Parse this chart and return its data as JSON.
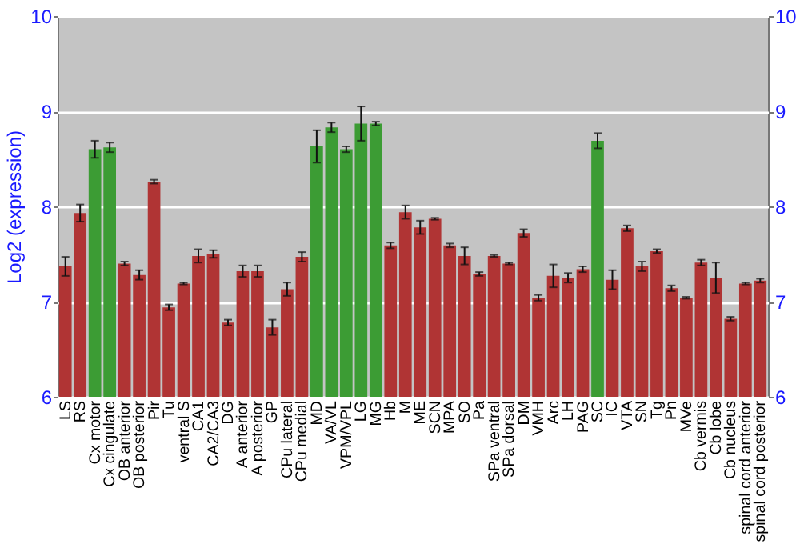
{
  "chart_data": {
    "type": "bar",
    "ylabel": "Log2 (expression)",
    "categories": [
      "LS",
      "RS",
      "Cx motor",
      "Cx cingulate",
      "OB anterior",
      "OB posterior",
      "Pir",
      "Tu",
      "ventral S",
      "CA1",
      "CA2/CA3",
      "DG",
      "A anterior",
      "A posterior",
      "GP",
      "CPu lateral",
      "CPu medial",
      "MD",
      "VA/VL",
      "VPM/VPL",
      "LG",
      "MG",
      "Hb",
      "M",
      "ME",
      "SCN",
      "MPA",
      "SO",
      "Pa",
      "SPa ventral",
      "SPa dorsal",
      "DM",
      "VMH",
      "Arc",
      "LH",
      "PAG",
      "SC",
      "IC",
      "VTA",
      "SN",
      "Tg",
      "Pn",
      "MVe",
      "Cb vermis",
      "Cb lobe",
      "Cb nucleus",
      "spinal cord anterior",
      "spinal cord posterior"
    ],
    "values": [
      7.37,
      7.93,
      8.6,
      8.62,
      7.4,
      7.28,
      8.26,
      6.94,
      7.19,
      7.48,
      7.5,
      6.78,
      7.32,
      7.32,
      6.73,
      7.13,
      7.47,
      8.63,
      8.83,
      8.6,
      8.87,
      8.87,
      7.59,
      7.94,
      7.78,
      7.87,
      7.59,
      7.48,
      7.29,
      7.48,
      7.4,
      7.72,
      7.04,
      7.27,
      7.25,
      7.34,
      8.69,
      7.23,
      7.77,
      7.37,
      7.53,
      7.14,
      7.04,
      7.41,
      7.25,
      6.82,
      7.19,
      7.22
    ],
    "errors": [
      0.1,
      0.09,
      0.09,
      0.05,
      0.02,
      0.05,
      0.02,
      0.03,
      0.01,
      0.07,
      0.04,
      0.03,
      0.06,
      0.06,
      0.08,
      0.07,
      0.05,
      0.17,
      0.05,
      0.03,
      0.18,
      0.02,
      0.03,
      0.07,
      0.07,
      0.01,
      0.02,
      0.09,
      0.02,
      0.01,
      0.01,
      0.04,
      0.03,
      0.12,
      0.05,
      0.03,
      0.08,
      0.1,
      0.03,
      0.05,
      0.02,
      0.03,
      0.01,
      0.03,
      0.16,
      0.02,
      0.01,
      0.02
    ],
    "colors": [
      "#b03434",
      "#b03434",
      "#3c9c34",
      "#3c9c34",
      "#b03434",
      "#b03434",
      "#b03434",
      "#b03434",
      "#b03434",
      "#b03434",
      "#b03434",
      "#b03434",
      "#b03434",
      "#b03434",
      "#b03434",
      "#b03434",
      "#b03434",
      "#3c9c34",
      "#3c9c34",
      "#3c9c34",
      "#3c9c34",
      "#3c9c34",
      "#b03434",
      "#b03434",
      "#b03434",
      "#b03434",
      "#b03434",
      "#b03434",
      "#b03434",
      "#b03434",
      "#b03434",
      "#b03434",
      "#b03434",
      "#b03434",
      "#b03434",
      "#b03434",
      "#3c9c34",
      "#b03434",
      "#b03434",
      "#b03434",
      "#b03434",
      "#b03434",
      "#b03434",
      "#b03434",
      "#b03434",
      "#b03434",
      "#b03434",
      "#b03434"
    ],
    "ylim": [
      6,
      10
    ],
    "yticks": [
      6,
      7,
      8,
      9,
      10
    ],
    "y2lim": [
      6,
      10
    ],
    "y2ticks": [
      6,
      7,
      8,
      9,
      10
    ],
    "grid": true
  }
}
